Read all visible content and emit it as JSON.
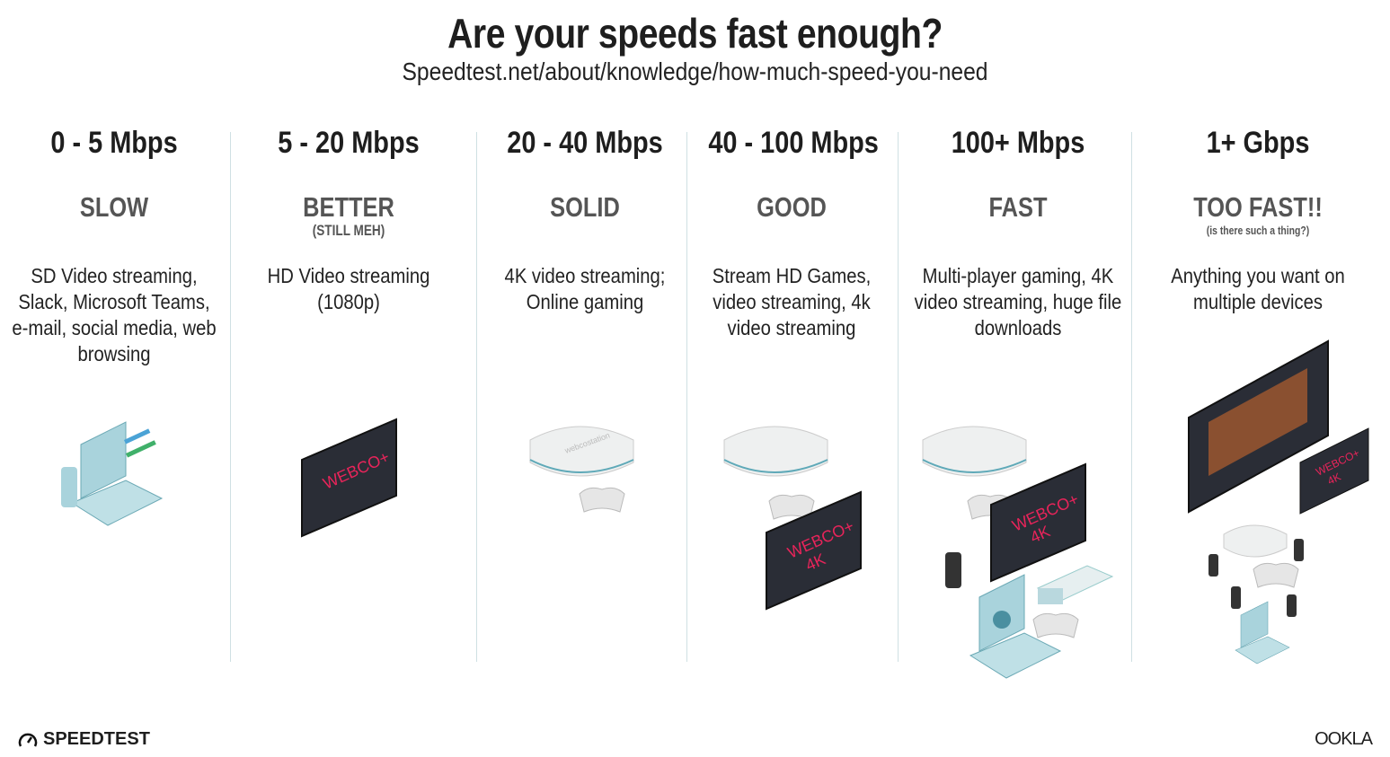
{
  "header": {
    "title": "Are your speeds fast enough?",
    "subtitle": "Speedtest.net/about/knowledge/how-much-speed-you-need"
  },
  "tiers": [
    {
      "speed": "0 - 5 Mbps",
      "label": "SLOW",
      "note": "",
      "desc": "SD Video streaming, Slack, Microsoft Teams, e-mail, social media, web browsing"
    },
    {
      "speed": "5 - 20 Mbps",
      "label": "BETTER",
      "note": "(STILL MEH)",
      "desc": "HD Video streaming (1080p)"
    },
    {
      "speed": "20 - 40 Mbps",
      "label": "SOLID",
      "note": "",
      "desc": "4K video streaming; Online gaming"
    },
    {
      "speed": "40 - 100 Mbps",
      "label": "GOOD",
      "note": "",
      "desc": "Stream HD Games, video streaming, 4k video streaming"
    },
    {
      "speed": "100+ Mbps",
      "label": "FAST",
      "note": "",
      "desc": "Multi-player gaming, 4K video streaming, huge file downloads"
    },
    {
      "speed": "1+ Gbps",
      "label": "TOO FAST!!",
      "note": "(is there such a thing?)",
      "desc": "Anything you want on multiple devices"
    }
  ],
  "tv_brand": "WEBCO+",
  "tv_4k": "4K",
  "console_brand": "webcostation",
  "footer": {
    "left_logo": "SPEEDTEST",
    "right_logo": "OOKLA"
  },
  "colors": {
    "tv_text": "#e8245a",
    "tv_body": "#2a2d36",
    "teal": "#7fb8c4",
    "divider": "#cfe0e3"
  }
}
